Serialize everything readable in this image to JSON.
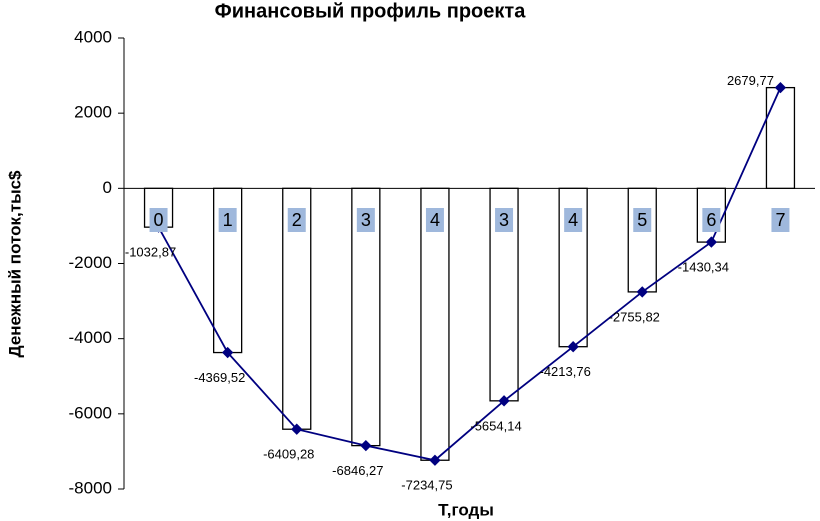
{
  "chart_data": {
    "type": "combo",
    "title": "Финансовый профиль проекта",
    "x_label": "Т,годы",
    "y_label": "Денежный поток,тыс$",
    "categories": [
      "0",
      "1",
      "2",
      "3",
      "4",
      "3",
      "4",
      "5",
      "6",
      "7"
    ],
    "values": [
      -1032.87,
      -4369.52,
      -6409.28,
      -6846.27,
      -7234.75,
      -5654.14,
      -4213.76,
      -2755.82,
      -1430.34,
      2679.77
    ],
    "value_labels": [
      "-1032,87",
      "-4369,52",
      "-6409,28",
      "-6846,27",
      "-7234,75",
      "-5654,14",
      "-4213,76",
      "-2755,82",
      "-1430,34",
      "2679,77"
    ],
    "bar_color": "#ffffff",
    "line_color": "#000080",
    "ylim": [
      -8000,
      4000
    ],
    "yticks": [
      -8000,
      -6000,
      -4000,
      -2000,
      0,
      2000,
      4000
    ],
    "grid": false
  }
}
